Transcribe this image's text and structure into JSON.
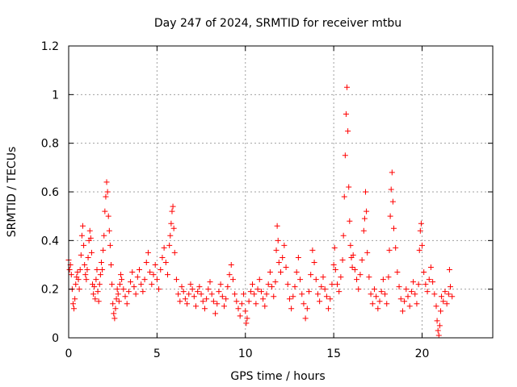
{
  "chart_data": {
    "type": "scatter",
    "title": "Day 247 of 2024, SRMTID for receiver mtbu",
    "xlabel": "GPS time / hours",
    "ylabel": "SRMTID / TECUs",
    "xlim": [
      0,
      24
    ],
    "ylim": [
      0,
      1.2
    ],
    "xticks": [
      0,
      5,
      10,
      15,
      20
    ],
    "xtick_labels": [
      "0",
      "5",
      "10",
      "15",
      "20"
    ],
    "yticks": [
      0,
      0.2,
      0.4,
      0.6,
      0.8,
      1,
      1.2
    ],
    "ytick_labels": [
      "0",
      "0.2",
      "0.4",
      "0.6",
      "0.8",
      "1",
      "1.2"
    ],
    "grid": true,
    "marker": "+",
    "marker_color": "#ff0000",
    "series": [
      {
        "name": "SRMTID",
        "points": [
          [
            0.0,
            0.32
          ],
          [
            0.05,
            0.28
          ],
          [
            0.1,
            0.3
          ],
          [
            0.15,
            0.26
          ],
          [
            0.2,
            0.2
          ],
          [
            0.25,
            0.14
          ],
          [
            0.3,
            0.12
          ],
          [
            0.35,
            0.16
          ],
          [
            0.4,
            0.22
          ],
          [
            0.45,
            0.25
          ],
          [
            0.5,
            0.27
          ],
          [
            0.55,
            0.24
          ],
          [
            0.6,
            0.2
          ],
          [
            0.65,
            0.28
          ],
          [
            0.7,
            0.34
          ],
          [
            0.75,
            0.42
          ],
          [
            0.8,
            0.46
          ],
          [
            0.85,
            0.38
          ],
          [
            0.9,
            0.3
          ],
          [
            0.95,
            0.26
          ],
          [
            1.0,
            0.24
          ],
          [
            1.05,
            0.28
          ],
          [
            1.1,
            0.33
          ],
          [
            1.15,
            0.4
          ],
          [
            1.2,
            0.44
          ],
          [
            1.25,
            0.41
          ],
          [
            1.3,
            0.35
          ],
          [
            1.35,
            0.22
          ],
          [
            1.4,
            0.18
          ],
          [
            1.45,
            0.21
          ],
          [
            1.5,
            0.16
          ],
          [
            1.55,
            0.24
          ],
          [
            1.6,
            0.28
          ],
          [
            1.65,
            0.19
          ],
          [
            1.7,
            0.15
          ],
          [
            1.75,
            0.22
          ],
          [
            1.8,
            0.26
          ],
          [
            1.85,
            0.31
          ],
          [
            1.9,
            0.28
          ],
          [
            1.95,
            0.36
          ],
          [
            2.0,
            0.42
          ],
          [
            2.05,
            0.52
          ],
          [
            2.1,
            0.58
          ],
          [
            2.15,
            0.64
          ],
          [
            2.2,
            0.6
          ],
          [
            2.25,
            0.5
          ],
          [
            2.3,
            0.44
          ],
          [
            2.35,
            0.38
          ],
          [
            2.4,
            0.3
          ],
          [
            2.45,
            0.22
          ],
          [
            2.5,
            0.14
          ],
          [
            2.55,
            0.1
          ],
          [
            2.6,
            0.08
          ],
          [
            2.65,
            0.12
          ],
          [
            2.7,
            0.16
          ],
          [
            2.75,
            0.2
          ],
          [
            2.8,
            0.18
          ],
          [
            2.85,
            0.15
          ],
          [
            2.9,
            0.22
          ],
          [
            2.95,
            0.26
          ],
          [
            3.0,
            0.24
          ],
          [
            3.1,
            0.2
          ],
          [
            3.2,
            0.17
          ],
          [
            3.3,
            0.14
          ],
          [
            3.4,
            0.19
          ],
          [
            3.5,
            0.23
          ],
          [
            3.6,
            0.27
          ],
          [
            3.7,
            0.21
          ],
          [
            3.8,
            0.18
          ],
          [
            3.9,
            0.25
          ],
          [
            4.0,
            0.28
          ],
          [
            4.1,
            0.22
          ],
          [
            4.2,
            0.19
          ],
          [
            4.3,
            0.24
          ],
          [
            4.4,
            0.31
          ],
          [
            4.5,
            0.35
          ],
          [
            4.6,
            0.27
          ],
          [
            4.7,
            0.22
          ],
          [
            4.8,
            0.26
          ],
          [
            4.9,
            0.3
          ],
          [
            5.0,
            0.24
          ],
          [
            5.1,
            0.2
          ],
          [
            5.2,
            0.28
          ],
          [
            5.3,
            0.33
          ],
          [
            5.4,
            0.37
          ],
          [
            5.5,
            0.31
          ],
          [
            5.6,
            0.26
          ],
          [
            5.7,
            0.38
          ],
          [
            5.75,
            0.42
          ],
          [
            5.8,
            0.47
          ],
          [
            5.85,
            0.52
          ],
          [
            5.9,
            0.54
          ],
          [
            5.95,
            0.45
          ],
          [
            6.0,
            0.35
          ],
          [
            6.1,
            0.24
          ],
          [
            6.2,
            0.18
          ],
          [
            6.3,
            0.15
          ],
          [
            6.4,
            0.21
          ],
          [
            6.5,
            0.19
          ],
          [
            6.6,
            0.16
          ],
          [
            6.7,
            0.14
          ],
          [
            6.8,
            0.18
          ],
          [
            6.9,
            0.22
          ],
          [
            7.0,
            0.2
          ],
          [
            7.1,
            0.17
          ],
          [
            7.2,
            0.13
          ],
          [
            7.3,
            0.19
          ],
          [
            7.4,
            0.21
          ],
          [
            7.5,
            0.18
          ],
          [
            7.6,
            0.15
          ],
          [
            7.7,
            0.12
          ],
          [
            7.8,
            0.16
          ],
          [
            7.9,
            0.2
          ],
          [
            8.0,
            0.23
          ],
          [
            8.1,
            0.18
          ],
          [
            8.2,
            0.15
          ],
          [
            8.3,
            0.1
          ],
          [
            8.4,
            0.14
          ],
          [
            8.5,
            0.19
          ],
          [
            8.6,
            0.22
          ],
          [
            8.7,
            0.17
          ],
          [
            8.8,
            0.13
          ],
          [
            8.9,
            0.16
          ],
          [
            9.0,
            0.21
          ],
          [
            9.1,
            0.26
          ],
          [
            9.2,
            0.3
          ],
          [
            9.3,
            0.24
          ],
          [
            9.4,
            0.18
          ],
          [
            9.5,
            0.15
          ],
          [
            9.6,
            0.12
          ],
          [
            9.7,
            0.09
          ],
          [
            9.8,
            0.14
          ],
          [
            9.9,
            0.18
          ],
          [
            10.0,
            0.11
          ],
          [
            10.05,
            0.06
          ],
          [
            10.1,
            0.08
          ],
          [
            10.2,
            0.15
          ],
          [
            10.3,
            0.19
          ],
          [
            10.4,
            0.22
          ],
          [
            10.5,
            0.18
          ],
          [
            10.6,
            0.14
          ],
          [
            10.7,
            0.2
          ],
          [
            10.8,
            0.24
          ],
          [
            10.9,
            0.19
          ],
          [
            11.0,
            0.16
          ],
          [
            11.1,
            0.13
          ],
          [
            11.2,
            0.18
          ],
          [
            11.3,
            0.22
          ],
          [
            11.4,
            0.27
          ],
          [
            11.5,
            0.21
          ],
          [
            11.6,
            0.17
          ],
          [
            11.7,
            0.23
          ],
          [
            11.75,
            0.36
          ],
          [
            11.8,
            0.46
          ],
          [
            11.85,
            0.4
          ],
          [
            11.9,
            0.31
          ],
          [
            12.0,
            0.27
          ],
          [
            12.1,
            0.33
          ],
          [
            12.2,
            0.38
          ],
          [
            12.3,
            0.29
          ],
          [
            12.4,
            0.22
          ],
          [
            12.5,
            0.16
          ],
          [
            12.6,
            0.12
          ],
          [
            12.7,
            0.17
          ],
          [
            12.8,
            0.21
          ],
          [
            12.9,
            0.27
          ],
          [
            13.0,
            0.33
          ],
          [
            13.1,
            0.24
          ],
          [
            13.2,
            0.18
          ],
          [
            13.3,
            0.14
          ],
          [
            13.4,
            0.08
          ],
          [
            13.5,
            0.12
          ],
          [
            13.6,
            0.19
          ],
          [
            13.7,
            0.26
          ],
          [
            13.8,
            0.36
          ],
          [
            13.9,
            0.31
          ],
          [
            14.0,
            0.24
          ],
          [
            14.1,
            0.18
          ],
          [
            14.2,
            0.15
          ],
          [
            14.3,
            0.21
          ],
          [
            14.4,
            0.25
          ],
          [
            14.5,
            0.2
          ],
          [
            14.6,
            0.17
          ],
          [
            14.7,
            0.12
          ],
          [
            14.8,
            0.16
          ],
          [
            14.9,
            0.22
          ],
          [
            15.0,
            0.3
          ],
          [
            15.05,
            0.37
          ],
          [
            15.1,
            0.28
          ],
          [
            15.2,
            0.22
          ],
          [
            15.3,
            0.19
          ],
          [
            15.4,
            0.25
          ],
          [
            15.5,
            0.32
          ],
          [
            15.55,
            0.42
          ],
          [
            15.6,
            0.58
          ],
          [
            15.65,
            0.75
          ],
          [
            15.7,
            0.92
          ],
          [
            15.75,
            1.03
          ],
          [
            15.8,
            0.85
          ],
          [
            15.85,
            0.62
          ],
          [
            15.9,
            0.48
          ],
          [
            15.95,
            0.38
          ],
          [
            16.0,
            0.33
          ],
          [
            16.05,
            0.29
          ],
          [
            16.1,
            0.34
          ],
          [
            16.2,
            0.28
          ],
          [
            16.3,
            0.24
          ],
          [
            16.4,
            0.2
          ],
          [
            16.5,
            0.26
          ],
          [
            16.6,
            0.32
          ],
          [
            16.7,
            0.44
          ],
          [
            16.75,
            0.49
          ],
          [
            16.8,
            0.6
          ],
          [
            16.85,
            0.52
          ],
          [
            16.9,
            0.35
          ],
          [
            17.0,
            0.25
          ],
          [
            17.1,
            0.18
          ],
          [
            17.2,
            0.14
          ],
          [
            17.3,
            0.2
          ],
          [
            17.4,
            0.17
          ],
          [
            17.5,
            0.12
          ],
          [
            17.6,
            0.15
          ],
          [
            17.7,
            0.19
          ],
          [
            17.8,
            0.24
          ],
          [
            17.9,
            0.18
          ],
          [
            18.0,
            0.14
          ],
          [
            18.1,
            0.25
          ],
          [
            18.15,
            0.36
          ],
          [
            18.2,
            0.5
          ],
          [
            18.25,
            0.61
          ],
          [
            18.3,
            0.68
          ],
          [
            18.35,
            0.56
          ],
          [
            18.4,
            0.45
          ],
          [
            18.5,
            0.37
          ],
          [
            18.6,
            0.27
          ],
          [
            18.7,
            0.21
          ],
          [
            18.8,
            0.16
          ],
          [
            18.9,
            0.11
          ],
          [
            19.0,
            0.15
          ],
          [
            19.1,
            0.2
          ],
          [
            19.2,
            0.17
          ],
          [
            19.3,
            0.13
          ],
          [
            19.4,
            0.19
          ],
          [
            19.5,
            0.23
          ],
          [
            19.6,
            0.18
          ],
          [
            19.7,
            0.14
          ],
          [
            19.8,
            0.22
          ],
          [
            19.85,
            0.36
          ],
          [
            19.9,
            0.44
          ],
          [
            19.95,
            0.47
          ],
          [
            20.0,
            0.38
          ],
          [
            20.1,
            0.27
          ],
          [
            20.2,
            0.22
          ],
          [
            20.3,
            0.19
          ],
          [
            20.4,
            0.24
          ],
          [
            20.5,
            0.29
          ],
          [
            20.6,
            0.23
          ],
          [
            20.7,
            0.18
          ],
          [
            20.8,
            0.13
          ],
          [
            20.85,
            0.07
          ],
          [
            20.9,
            0.03
          ],
          [
            20.95,
            0.01
          ],
          [
            21.0,
            0.05
          ],
          [
            21.05,
            0.11
          ],
          [
            21.1,
            0.17
          ],
          [
            21.2,
            0.15
          ],
          [
            21.3,
            0.19
          ],
          [
            21.4,
            0.14
          ],
          [
            21.5,
            0.18
          ],
          [
            21.55,
            0.28
          ],
          [
            21.6,
            0.21
          ],
          [
            21.7,
            0.17
          ]
        ]
      }
    ]
  }
}
